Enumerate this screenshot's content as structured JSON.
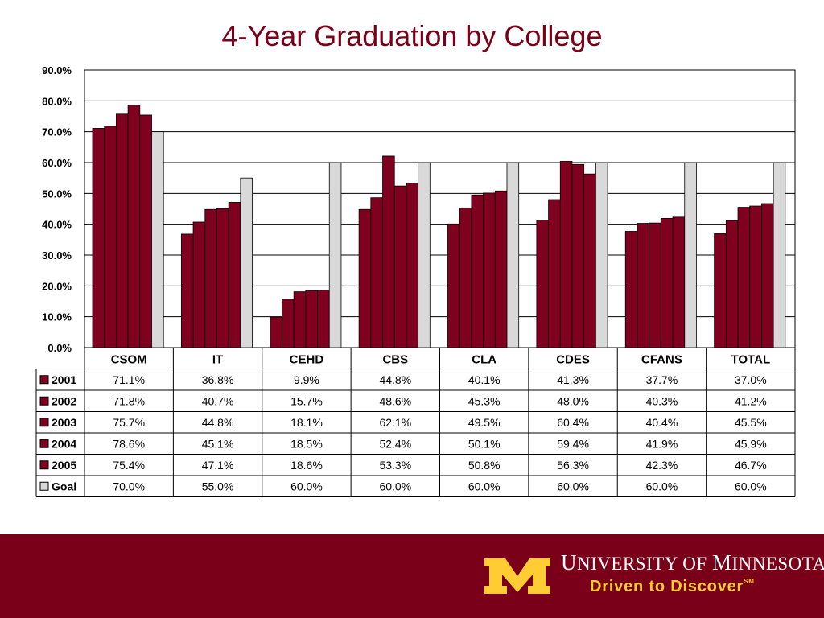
{
  "title": "4-Year Graduation by College",
  "footer": {
    "university_u": "U",
    "university_rest1": "NIVERSITY OF ",
    "university_m": "M",
    "university_rest2": "INNESOTA",
    "tagline": "Driven to Discover",
    "tagline_mark": "SM",
    "logo_letter": "M",
    "colors": {
      "background": "#7a0019",
      "gold": "#ffcc33",
      "text": "#ffffff"
    }
  },
  "chart_data": {
    "type": "bar",
    "title": "4-Year Graduation by College",
    "categories": [
      "CSOM",
      "IT",
      "CEHD",
      "CBS",
      "CLA",
      "CDES",
      "CFANS",
      "TOTAL"
    ],
    "series": [
      {
        "name": "2001",
        "color": "#800020",
        "values": [
          71.1,
          36.8,
          9.9,
          44.8,
          40.1,
          41.3,
          37.7,
          37.0
        ],
        "labels": [
          "71.1%",
          "36.8%",
          "9.9%",
          "44.8%",
          "40.1%",
          "41.3%",
          "37.7%",
          "37.0%"
        ]
      },
      {
        "name": "2002",
        "color": "#800020",
        "values": [
          71.8,
          40.7,
          15.7,
          48.6,
          45.3,
          48.0,
          40.3,
          41.2
        ],
        "labels": [
          "71.8%",
          "40.7%",
          "15.7%",
          "48.6%",
          "45.3%",
          "48.0%",
          "40.3%",
          "41.2%"
        ]
      },
      {
        "name": "2003",
        "color": "#800020",
        "values": [
          75.7,
          44.8,
          18.1,
          62.1,
          49.5,
          60.4,
          40.4,
          45.5
        ],
        "labels": [
          "75.7%",
          "44.8%",
          "18.1%",
          "62.1%",
          "49.5%",
          "60.4%",
          "40.4%",
          "45.5%"
        ]
      },
      {
        "name": "2004",
        "color": "#800020",
        "values": [
          78.6,
          45.1,
          18.5,
          52.4,
          50.1,
          59.4,
          41.9,
          45.9
        ],
        "labels": [
          "78.6%",
          "45.1%",
          "18.5%",
          "52.4%",
          "50.1%",
          "59.4%",
          "41.9%",
          "45.9%"
        ]
      },
      {
        "name": "2005",
        "color": "#800020",
        "values": [
          75.4,
          47.1,
          18.6,
          53.3,
          50.8,
          56.3,
          42.3,
          46.7
        ],
        "labels": [
          "75.4%",
          "47.1%",
          "18.6%",
          "53.3%",
          "50.8%",
          "56.3%",
          "42.3%",
          "46.7%"
        ]
      },
      {
        "name": "Goal",
        "color": "#d9d9d9",
        "values": [
          70.0,
          55.0,
          60.0,
          60.0,
          60.0,
          60.0,
          60.0,
          60.0
        ],
        "labels": [
          "70.0%",
          "55.0%",
          "60.0%",
          "60.0%",
          "60.0%",
          "60.0%",
          "60.0%",
          "60.0%"
        ]
      }
    ],
    "y_ticks": [
      "0.0%",
      "10.0%",
      "20.0%",
      "30.0%",
      "40.0%",
      "50.0%",
      "60.0%",
      "70.0%",
      "80.0%",
      "90.0%"
    ],
    "ylim": [
      0,
      90
    ],
    "grid": true,
    "legend": "data-table",
    "xlabel": "",
    "ylabel": ""
  }
}
